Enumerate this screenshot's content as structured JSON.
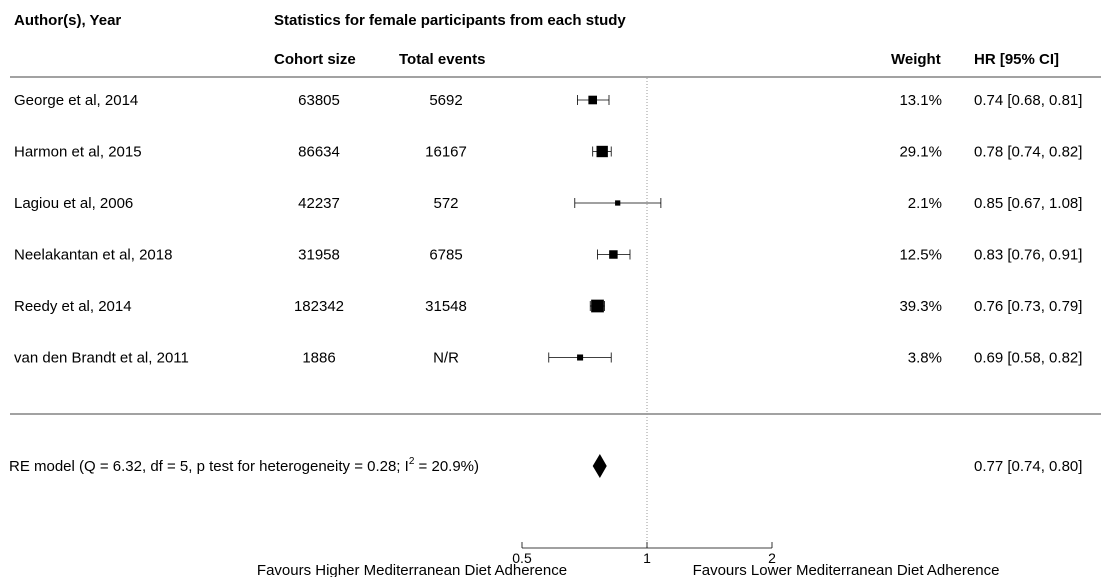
{
  "chart_data": {
    "type": "forest",
    "headers": {
      "author": "Author(s), Year",
      "group": "Statistics for female participants from each study",
      "cohort": "Cohort size",
      "events": "Total events",
      "weight": "Weight",
      "hr": "HR [95% CI]"
    },
    "studies": [
      {
        "label": "George et al, 2014",
        "cohort": "63805",
        "events": "5692",
        "weight": "13.1%",
        "weight_value": 13.1,
        "hr": 0.74,
        "ci_low": 0.68,
        "ci_high": 0.81,
        "hr_text": "0.74 [0.68, 0.81]"
      },
      {
        "label": "Harmon et al, 2015",
        "cohort": "86634",
        "events": "16167",
        "weight": "29.1%",
        "weight_value": 29.1,
        "hr": 0.78,
        "ci_low": 0.74,
        "ci_high": 0.82,
        "hr_text": "0.78 [0.74, 0.82]"
      },
      {
        "label": "Lagiou et al, 2006",
        "cohort": "42237",
        "events": "572",
        "weight": "2.1%",
        "weight_value": 2.1,
        "hr": 0.85,
        "ci_low": 0.67,
        "ci_high": 1.08,
        "hr_text": "0.85 [0.67, 1.08]"
      },
      {
        "label": "Neelakantan et al, 2018",
        "cohort": "31958",
        "events": "6785",
        "weight": "12.5%",
        "weight_value": 12.5,
        "hr": 0.83,
        "ci_low": 0.76,
        "ci_high": 0.91,
        "hr_text": "0.83 [0.76, 0.91]"
      },
      {
        "label": "Reedy et al, 2014",
        "cohort": "182342",
        "events": "31548",
        "weight": "39.3%",
        "weight_value": 39.3,
        "hr": 0.76,
        "ci_low": 0.73,
        "ci_high": 0.79,
        "hr_text": "0.76 [0.73, 0.79]"
      },
      {
        "label": "van den Brandt et al, 2011",
        "cohort": "1886",
        "events": "N/R",
        "weight": "3.8%",
        "weight_value": 3.8,
        "hr": 0.69,
        "ci_low": 0.58,
        "ci_high": 0.82,
        "hr_text": "0.69 [0.58, 0.82]"
      }
    ],
    "summary": {
      "label_main": "RE model (Q = 6.32, df = 5, p test for heterogeneity = 0.28; I",
      "label_sup": "2",
      "label_tail": " = 20.9%)",
      "hr": 0.77,
      "ci_low": 0.74,
      "ci_high": 0.8,
      "hr_text": "0.77 [0.74, 0.80]"
    },
    "x_axis": {
      "scale": "log",
      "ticks": [
        0.5,
        1,
        2
      ],
      "tick_labels": [
        "0.5",
        "1",
        "2"
      ],
      "reference": 1,
      "left_label": "Favours Higher Mediterranean Diet Adherence",
      "right_label": "Favours Lower Mediterranean Diet Adherence"
    }
  }
}
